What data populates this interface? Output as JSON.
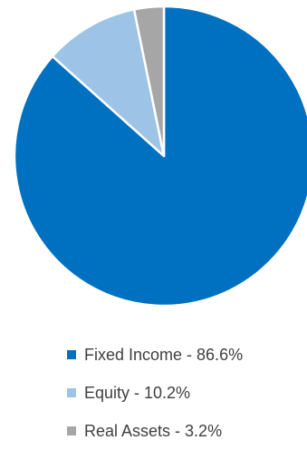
{
  "chart_data": {
    "type": "pie",
    "title": "",
    "start_angle": "12 o'clock",
    "direction": "clockwise",
    "slices": [
      {
        "label": "Fixed Income - 86.6%",
        "value": 86.6,
        "color": "#0070C0"
      },
      {
        "label": "Equity - 10.2%",
        "value": 10.2,
        "color": "#9DC3E6"
      },
      {
        "label": "Real Assets - 3.2%",
        "value": 3.2,
        "color": "#A6A6A6"
      }
    ],
    "legend": "bottom",
    "slice_border_color": "#FFFFFF"
  }
}
